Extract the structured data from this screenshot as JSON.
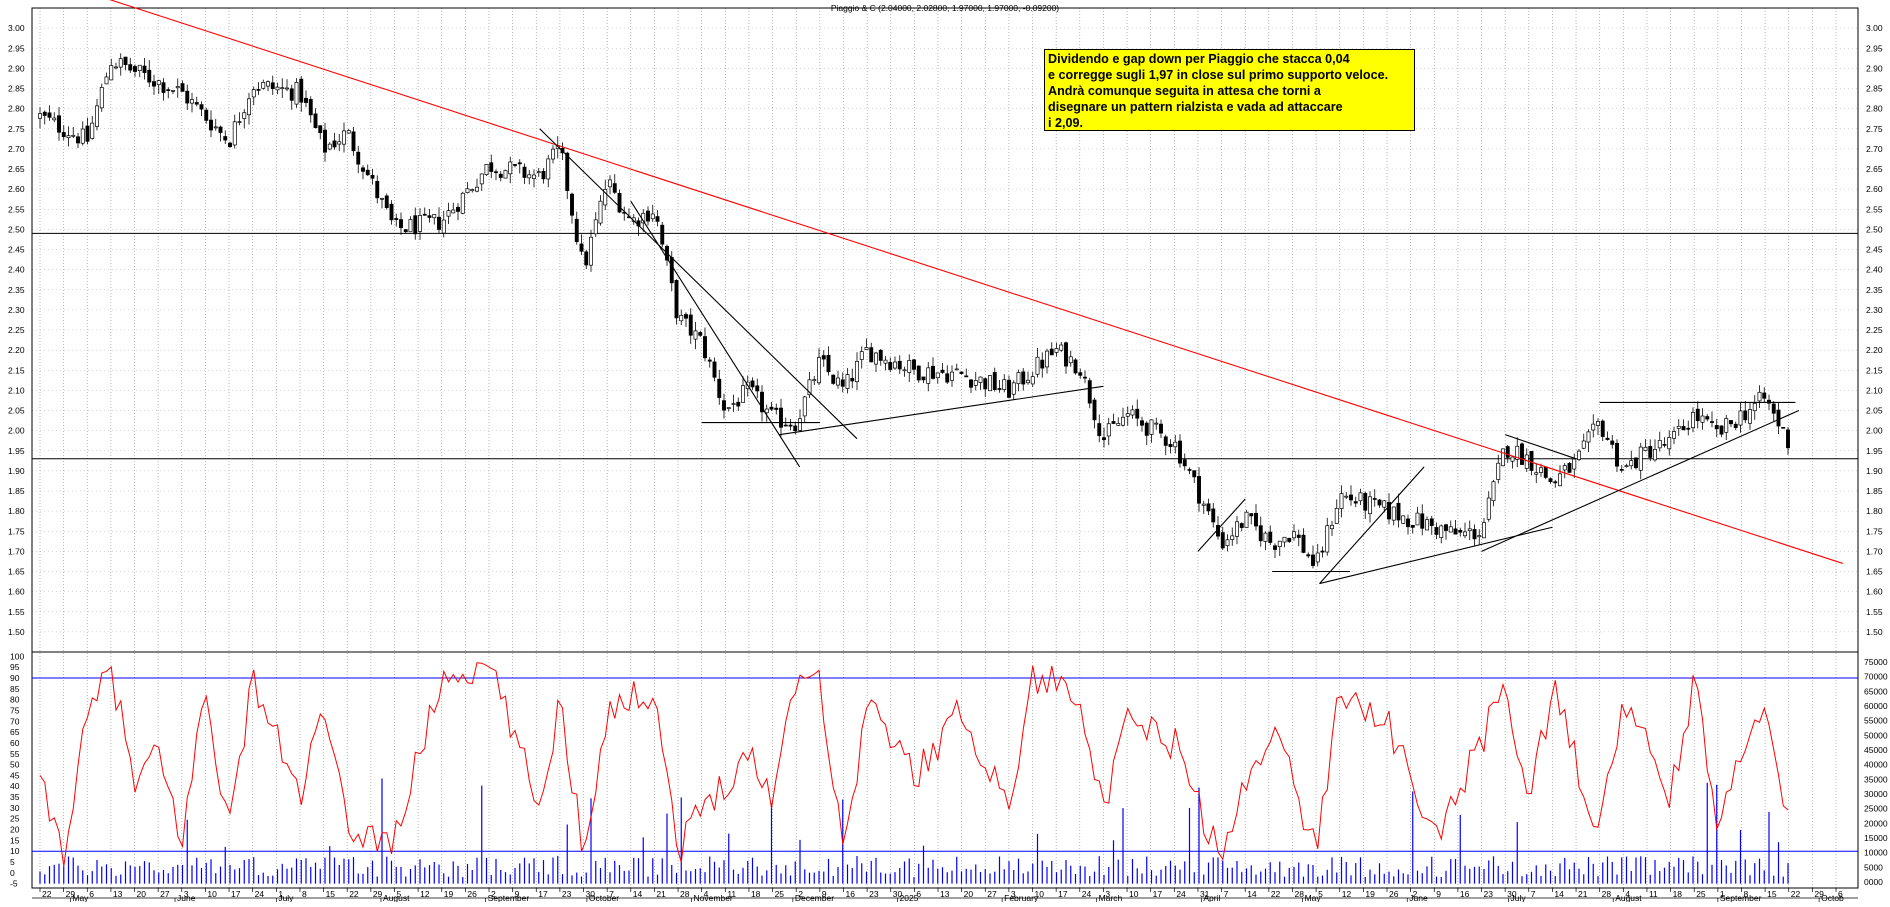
{
  "chart_data": [
    {
      "type": "candlestick",
      "title": "Piaggio & C (2.04000, 2.02800, 1.97000, 1.97000, -0.09200)",
      "ylim": [
        1.45,
        3.05
      ],
      "y_ticks": [
        "1.50",
        "1.55",
        "1.60",
        "1.65",
        "1.70",
        "1.75",
        "1.80",
        "1.85",
        "1.90",
        "1.95",
        "2.00",
        "2.05",
        "2.10",
        "2.15",
        "2.20",
        "2.25",
        "2.30",
        "2.35",
        "2.40",
        "2.45",
        "2.50",
        "2.55",
        "2.60",
        "2.65",
        "2.70",
        "2.75",
        "2.80",
        "2.85",
        "2.90",
        "2.95",
        "3.00"
      ],
      "x_day_labels": [
        "22",
        "29",
        "6",
        "13",
        "20",
        "27",
        "3",
        "10",
        "17",
        "24",
        "1",
        "8",
        "15",
        "22",
        "29",
        "5",
        "12",
        "19",
        "26",
        "2",
        "9",
        "17",
        "23",
        "30",
        "7",
        "14",
        "21",
        "28",
        "4",
        "11",
        "18",
        "25",
        "2",
        "9",
        "16",
        "23",
        "30",
        "6",
        "13",
        "20",
        "27",
        "3",
        "10",
        "17",
        "24",
        "3",
        "10",
        "17",
        "24",
        "31",
        "7",
        "14",
        "22",
        "28",
        "5",
        "12",
        "19",
        "26",
        "2",
        "9",
        "16",
        "23",
        "30",
        "7",
        "14",
        "21",
        "28",
        "4",
        "11",
        "18",
        "25",
        "1",
        "8",
        "15",
        "22",
        "29",
        "6"
      ],
      "x_month_labels": [
        "May",
        "June",
        "July",
        "August",
        "September",
        "October",
        "November",
        "December",
        "2025",
        "February",
        "March",
        "April",
        "May",
        "June",
        "July",
        "August",
        "September",
        "Octob"
      ],
      "price_path": [
        {
          "date": "2024-04-22",
          "close": 2.78
        },
        {
          "date": "2024-05-06",
          "close": 2.72
        },
        {
          "date": "2024-05-13",
          "close": 2.92
        },
        {
          "date": "2024-06-03",
          "close": 2.84
        },
        {
          "date": "2024-06-17",
          "close": 2.72
        },
        {
          "date": "2024-06-24",
          "close": 2.86
        },
        {
          "date": "2024-07-08",
          "close": 2.84
        },
        {
          "date": "2024-07-15",
          "close": 2.7
        },
        {
          "date": "2024-07-22",
          "close": 2.74
        },
        {
          "date": "2024-08-05",
          "close": 2.5
        },
        {
          "date": "2024-08-19",
          "close": 2.52
        },
        {
          "date": "2024-09-02",
          "close": 2.66
        },
        {
          "date": "2024-09-17",
          "close": 2.63
        },
        {
          "date": "2024-09-23",
          "close": 2.7
        },
        {
          "date": "2024-09-30",
          "close": 2.4
        },
        {
          "date": "2024-10-07",
          "close": 2.62
        },
        {
          "date": "2024-10-14",
          "close": 2.52
        },
        {
          "date": "2024-10-21",
          "close": 2.55
        },
        {
          "date": "2024-10-28",
          "close": 2.28
        },
        {
          "date": "2024-11-04",
          "close": 2.22
        },
        {
          "date": "2024-11-11",
          "close": 2.05
        },
        {
          "date": "2024-11-18",
          "close": 2.1
        },
        {
          "date": "2024-11-25",
          "close": 2.03
        },
        {
          "date": "2024-12-02",
          "close": 2.02
        },
        {
          "date": "2024-12-09",
          "close": 2.17
        },
        {
          "date": "2024-12-16",
          "close": 2.1
        },
        {
          "date": "2024-12-23",
          "close": 2.2
        },
        {
          "date": "2025-01-06",
          "close": 2.15
        },
        {
          "date": "2025-01-20",
          "close": 2.14
        },
        {
          "date": "2025-02-03",
          "close": 2.1
        },
        {
          "date": "2025-02-17",
          "close": 2.2
        },
        {
          "date": "2025-02-24",
          "close": 2.16
        },
        {
          "date": "2025-03-03",
          "close": 1.98
        },
        {
          "date": "2025-03-10",
          "close": 2.04
        },
        {
          "date": "2025-03-24",
          "close": 1.97
        },
        {
          "date": "2025-03-31",
          "close": 1.85
        },
        {
          "date": "2025-04-07",
          "close": 1.72
        },
        {
          "date": "2025-04-14",
          "close": 1.78
        },
        {
          "date": "2025-04-22",
          "close": 1.72
        },
        {
          "date": "2025-04-28",
          "close": 1.75
        },
        {
          "date": "2025-05-05",
          "close": 1.66
        },
        {
          "date": "2025-05-12",
          "close": 1.84
        },
        {
          "date": "2025-05-19",
          "close": 1.82
        },
        {
          "date": "2025-06-02",
          "close": 1.78
        },
        {
          "date": "2025-06-16",
          "close": 1.74
        },
        {
          "date": "2025-06-23",
          "close": 1.75
        },
        {
          "date": "2025-06-30",
          "close": 1.96
        },
        {
          "date": "2025-07-07",
          "close": 1.93
        },
        {
          "date": "2025-07-14",
          "close": 1.87
        },
        {
          "date": "2025-07-21",
          "close": 1.92
        },
        {
          "date": "2025-07-28",
          "close": 2.02
        },
        {
          "date": "2025-08-04",
          "close": 1.9
        },
        {
          "date": "2025-08-11",
          "close": 1.95
        },
        {
          "date": "2025-08-18",
          "close": 1.97
        },
        {
          "date": "2025-08-25",
          "close": 2.04
        },
        {
          "date": "2025-09-01",
          "close": 1.99
        },
        {
          "date": "2025-09-08",
          "close": 2.04
        },
        {
          "date": "2025-09-15",
          "close": 2.08
        },
        {
          "date": "2025-09-22",
          "close": 1.97
        }
      ],
      "horizontal_levels": [
        2.49,
        1.93
      ],
      "trendlines": [
        {
          "color": "#ff0000",
          "from": {
            "date": "2024-05-02",
            "value": 3.1
          },
          "to": {
            "date": "2025-10-08",
            "value": 1.67
          }
        },
        {
          "color": "#000000",
          "from": {
            "date": "2024-09-17",
            "value": 2.75
          },
          "to": {
            "date": "2024-12-20",
            "value": 1.98
          }
        },
        {
          "color": "#000000",
          "from": {
            "date": "2024-10-14",
            "value": 2.57
          },
          "to": {
            "date": "2024-12-03",
            "value": 1.91
          }
        },
        {
          "color": "#000000",
          "from": {
            "date": "2024-11-04",
            "value": 2.02
          },
          "to": {
            "date": "2024-12-09",
            "value": 2.02
          }
        },
        {
          "color": "#000000",
          "from": {
            "date": "2024-11-27",
            "value": 1.99
          },
          "to": {
            "date": "2025-03-03",
            "value": 2.11
          }
        },
        {
          "color": "#000000",
          "from": {
            "date": "2025-03-31",
            "value": 1.7
          },
          "to": {
            "date": "2025-04-14",
            "value": 1.83
          }
        },
        {
          "color": "#000000",
          "from": {
            "date": "2025-04-22",
            "value": 1.65
          },
          "to": {
            "date": "2025-05-15",
            "value": 1.65
          }
        },
        {
          "color": "#000000",
          "from": {
            "date": "2025-05-06",
            "value": 1.62
          },
          "to": {
            "date": "2025-06-06",
            "value": 1.91
          }
        },
        {
          "color": "#000000",
          "from": {
            "date": "2025-05-06",
            "value": 1.62
          },
          "to": {
            "date": "2025-07-14",
            "value": 1.76
          }
        },
        {
          "color": "#000000",
          "from": {
            "date": "2025-06-23",
            "value": 1.7
          },
          "to": {
            "date": "2025-09-25",
            "value": 2.05
          }
        },
        {
          "color": "#000000",
          "from": {
            "date": "2025-06-30",
            "value": 1.99
          },
          "to": {
            "date": "2025-07-21",
            "value": 1.93
          }
        },
        {
          "color": "#000000",
          "from": {
            "date": "2025-07-28",
            "value": 2.07
          },
          "to": {
            "date": "2025-09-24",
            "value": 2.07
          }
        }
      ],
      "annotation_lines": [
        "Dividendo e gap down per Piaggio che stacca 0,04",
        "e corregge sugli 1,97 in close sul primo supporto veloce.",
        "Andrà comunque seguita in attesa che torni a",
        "disegnare un pattern rialzista e vada ad attaccare",
        "i 2,09."
      ],
      "colors": {
        "candles": "#000000",
        "trendline": "#ff0000",
        "grid": "#808080"
      }
    },
    {
      "type": "line",
      "ylim": [
        -7,
        102
      ],
      "y_ticks_left": [
        "-5",
        "0",
        "5",
        "10",
        "15",
        "20",
        "25",
        "30",
        "35",
        "40",
        "45",
        "50",
        "55",
        "60",
        "65",
        "70",
        "75",
        "80",
        "85",
        "90",
        "95",
        "100"
      ],
      "y_ticks_right": [
        "0000",
        "5000",
        "10000",
        "15000",
        "20000",
        "25000",
        "30000",
        "35000",
        "40000",
        "45000",
        "50000",
        "55000",
        "60000",
        "65000",
        "70000",
        "75000"
      ],
      "reference_levels": [
        90,
        10
      ],
      "oscillator_path": [
        {
          "date": "2024-04-22",
          "value": 40
        },
        {
          "date": "2024-04-29",
          "value": 10
        },
        {
          "date": "2024-05-06",
          "value": 70
        },
        {
          "date": "2024-05-13",
          "value": 95
        },
        {
          "date": "2024-05-20",
          "value": 40
        },
        {
          "date": "2024-05-27",
          "value": 55
        },
        {
          "date": "2024-06-03",
          "value": 15
        },
        {
          "date": "2024-06-10",
          "value": 85
        },
        {
          "date": "2024-06-17",
          "value": 20
        },
        {
          "date": "2024-06-24",
          "value": 90
        },
        {
          "date": "2024-07-08",
          "value": 35
        },
        {
          "date": "2024-07-15",
          "value": 75
        },
        {
          "date": "2024-07-22",
          "value": 20
        },
        {
          "date": "2024-08-05",
          "value": 15
        },
        {
          "date": "2024-08-19",
          "value": 90
        },
        {
          "date": "2024-09-02",
          "value": 96
        },
        {
          "date": "2024-09-17",
          "value": 30
        },
        {
          "date": "2024-09-23",
          "value": 80
        },
        {
          "date": "2024-09-30",
          "value": 10
        },
        {
          "date": "2024-10-07",
          "value": 75
        },
        {
          "date": "2024-10-21",
          "value": 85
        },
        {
          "date": "2024-10-28",
          "value": 10
        },
        {
          "date": "2024-11-04",
          "value": 30
        },
        {
          "date": "2024-11-18",
          "value": 55
        },
        {
          "date": "2024-11-25",
          "value": 35
        },
        {
          "date": "2024-12-02",
          "value": 93
        },
        {
          "date": "2024-12-09",
          "value": 90
        },
        {
          "date": "2024-12-16",
          "value": 8
        },
        {
          "date": "2024-12-23",
          "value": 80
        },
        {
          "date": "2025-01-06",
          "value": 45
        },
        {
          "date": "2025-01-20",
          "value": 75
        },
        {
          "date": "2025-02-03",
          "value": 30
        },
        {
          "date": "2025-02-10",
          "value": 90
        },
        {
          "date": "2025-02-24",
          "value": 85
        },
        {
          "date": "2025-03-03",
          "value": 25
        },
        {
          "date": "2025-03-10",
          "value": 70
        },
        {
          "date": "2025-03-24",
          "value": 60
        },
        {
          "date": "2025-04-07",
          "value": 5
        },
        {
          "date": "2025-04-14",
          "value": 40
        },
        {
          "date": "2025-04-22",
          "value": 70
        },
        {
          "date": "2025-05-05",
          "value": 10
        },
        {
          "date": "2025-05-12",
          "value": 85
        },
        {
          "date": "2025-05-26",
          "value": 70
        },
        {
          "date": "2025-06-09",
          "value": 15
        },
        {
          "date": "2025-06-23",
          "value": 60
        },
        {
          "date": "2025-06-30",
          "value": 90
        },
        {
          "date": "2025-07-07",
          "value": 30
        },
        {
          "date": "2025-07-14",
          "value": 85
        },
        {
          "date": "2025-07-28",
          "value": 18
        },
        {
          "date": "2025-08-04",
          "value": 80
        },
        {
          "date": "2025-08-18",
          "value": 35
        },
        {
          "date": "2025-08-25",
          "value": 88
        },
        {
          "date": "2025-09-01",
          "value": 20
        },
        {
          "date": "2025-09-15",
          "value": 85
        },
        {
          "date": "2025-09-22",
          "value": 20
        }
      ],
      "colors": {
        "oscillator": "#ff0000",
        "volume": "#0000ff",
        "levels": "#0000ff"
      }
    }
  ]
}
